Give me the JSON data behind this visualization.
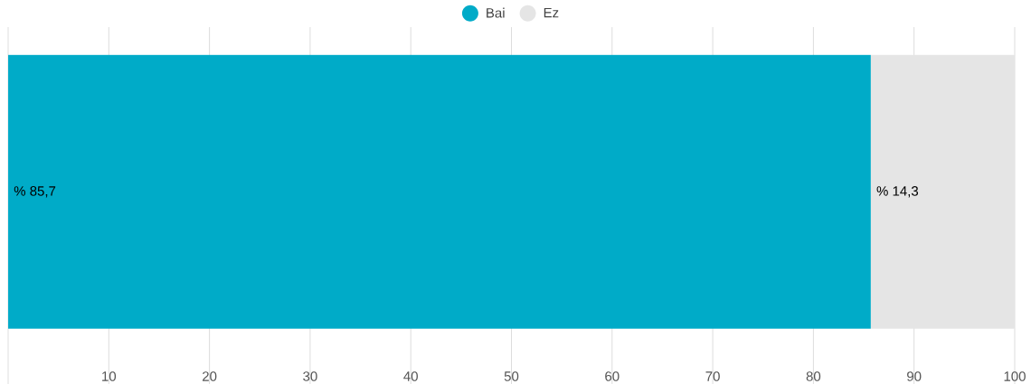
{
  "chart_data": {
    "type": "bar",
    "orientation": "horizontal",
    "stacked": true,
    "categories": [
      null
    ],
    "series": [
      {
        "name": "Bai",
        "color": "#00abc8",
        "values": [
          85.7
        ],
        "value_labels": [
          "% 85,7"
        ]
      },
      {
        "name": "Ez",
        "color": "#e5e5e5",
        "values": [
          14.3
        ],
        "value_labels": [
          "% 14,3"
        ]
      }
    ],
    "xlim": [
      0,
      100
    ],
    "xticks": [
      {
        "value": 0,
        "label": null
      },
      10,
      20,
      30,
      40,
      50,
      60,
      70,
      80,
      90,
      100
    ],
    "grid": "x",
    "legend": "top"
  }
}
